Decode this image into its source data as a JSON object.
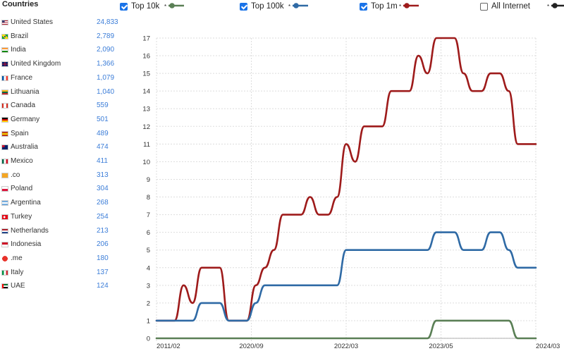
{
  "sidebar": {
    "title": "Countries",
    "countries": [
      {
        "name": "United States",
        "count": "24,833",
        "flag": "us"
      },
      {
        "name": "Brazil",
        "count": "2,789",
        "flag": "br"
      },
      {
        "name": "India",
        "count": "2,090",
        "flag": "in"
      },
      {
        "name": "United Kingdom",
        "count": "1,366",
        "flag": "gb"
      },
      {
        "name": "France",
        "count": "1,079",
        "flag": "fr"
      },
      {
        "name": "Lithuania",
        "count": "1,040",
        "flag": "lt"
      },
      {
        "name": "Canada",
        "count": "559",
        "flag": "ca"
      },
      {
        "name": "Germany",
        "count": "501",
        "flag": "de"
      },
      {
        "name": "Spain",
        "count": "489",
        "flag": "es"
      },
      {
        "name": "Australia",
        "count": "474",
        "flag": "au"
      },
      {
        "name": "Mexico",
        "count": "411",
        "flag": "mx"
      },
      {
        "name": ".co",
        "count": "313",
        "flag": "co"
      },
      {
        "name": "Poland",
        "count": "304",
        "flag": "pl"
      },
      {
        "name": "Argentina",
        "count": "268",
        "flag": "ar"
      },
      {
        "name": "Turkey",
        "count": "254",
        "flag": "tr"
      },
      {
        "name": "Netherlands",
        "count": "213",
        "flag": "nl"
      },
      {
        "name": "Indonesia",
        "count": "206",
        "flag": "id"
      },
      {
        "name": ".me",
        "count": "180",
        "flag": "me"
      },
      {
        "name": "Italy",
        "count": "137",
        "flag": "it"
      },
      {
        "name": "UAE",
        "count": "124",
        "flag": "ae"
      }
    ]
  },
  "legend": [
    {
      "label": "Top 10k",
      "checked": true,
      "color": "#5a7f55"
    },
    {
      "label": "Top 100k",
      "checked": true,
      "color": "#2f6aa5"
    },
    {
      "label": "Top 1m",
      "checked": true,
      "color": "#9e1b1b"
    },
    {
      "label": "All Internet",
      "checked": false,
      "color": "#222222"
    }
  ],
  "chart_data": {
    "type": "line",
    "x_tick_labels": [
      "2011/02",
      "2020/09",
      "2022/03",
      "2023/05",
      "2024/03"
    ],
    "y_ticks": [
      0,
      1,
      2,
      3,
      4,
      5,
      6,
      7,
      8,
      9,
      10,
      11,
      12,
      13,
      14,
      15,
      16,
      17
    ],
    "ylim": [
      0,
      17
    ],
    "grid": true,
    "series": [
      {
        "name": "Top 1m",
        "color": "#9e1b1b",
        "values": [
          1,
          1,
          1,
          3,
          2,
          4,
          4,
          4,
          1,
          1,
          1,
          3,
          4,
          5,
          7,
          7,
          7,
          8,
          7,
          7,
          8,
          11,
          10,
          12,
          12,
          12,
          14,
          14,
          14,
          16,
          15,
          17,
          17,
          17,
          15,
          14,
          14,
          15,
          15,
          14,
          11,
          11,
          11
        ]
      },
      {
        "name": "Top 100k",
        "color": "#2f6aa5",
        "values": [
          1,
          1,
          1,
          1,
          1,
          2,
          2,
          2,
          1,
          1,
          1,
          2,
          3,
          3,
          3,
          3,
          3,
          3,
          3,
          3,
          3,
          5,
          5,
          5,
          5,
          5,
          5,
          5,
          5,
          5,
          5,
          6,
          6,
          6,
          5,
          5,
          5,
          6,
          6,
          5,
          4,
          4,
          4
        ]
      },
      {
        "name": "Top 10k",
        "color": "#5a7f55",
        "values": [
          0,
          0,
          0,
          0,
          0,
          0,
          0,
          0,
          0,
          0,
          0,
          0,
          0,
          0,
          0,
          0,
          0,
          0,
          0,
          0,
          0,
          0,
          0,
          0,
          0,
          0,
          0,
          0,
          0,
          0,
          0,
          1,
          1,
          1,
          1,
          1,
          1,
          1,
          1,
          1,
          0,
          0,
          0
        ]
      }
    ]
  }
}
